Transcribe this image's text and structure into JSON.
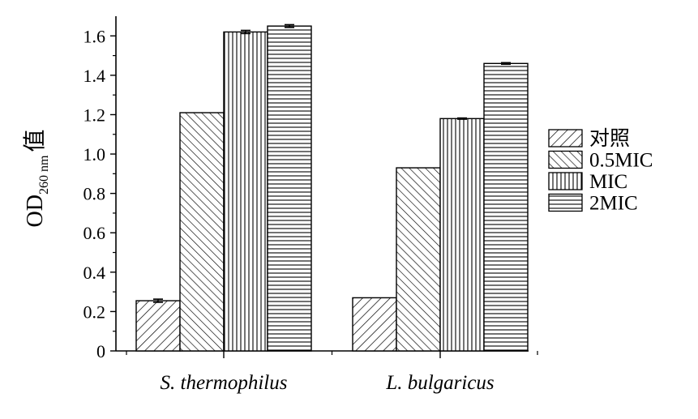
{
  "chart_data": {
    "type": "bar",
    "title": "",
    "xlabel": "",
    "ylabel": {
      "main": "OD",
      "subscript": "260 nm",
      "suffix": "值"
    },
    "ylim": [
      0,
      1.7
    ],
    "yticks": [
      0,
      0.2,
      0.4,
      0.6,
      0.8,
      1.0,
      1.2,
      1.4,
      1.6
    ],
    "ytick_labels": [
      "0",
      "0.2",
      "0.4",
      "0.6",
      "0.8",
      "1.0",
      "1.2",
      "1.4",
      "1.6"
    ],
    "categories": [
      "S. thermophilus",
      "L. bulgaricus"
    ],
    "series": [
      {
        "name": "对照",
        "pattern": "diag-forward",
        "values": [
          0.255,
          0.27
        ],
        "errors": [
          0.008,
          0
        ]
      },
      {
        "name": "0.5MIC",
        "pattern": "diag-back",
        "values": [
          1.21,
          0.93
        ],
        "errors": [
          0,
          0
        ]
      },
      {
        "name": "MIC",
        "pattern": "vertical",
        "values": [
          1.62,
          1.18
        ],
        "errors": [
          0.008,
          0.003
        ]
      },
      {
        "name": "2MIC",
        "pattern": "horizontal",
        "values": [
          1.65,
          1.46
        ],
        "errors": [
          0.007,
          0.004
        ]
      }
    ],
    "grid": false,
    "legend_position": "right"
  }
}
